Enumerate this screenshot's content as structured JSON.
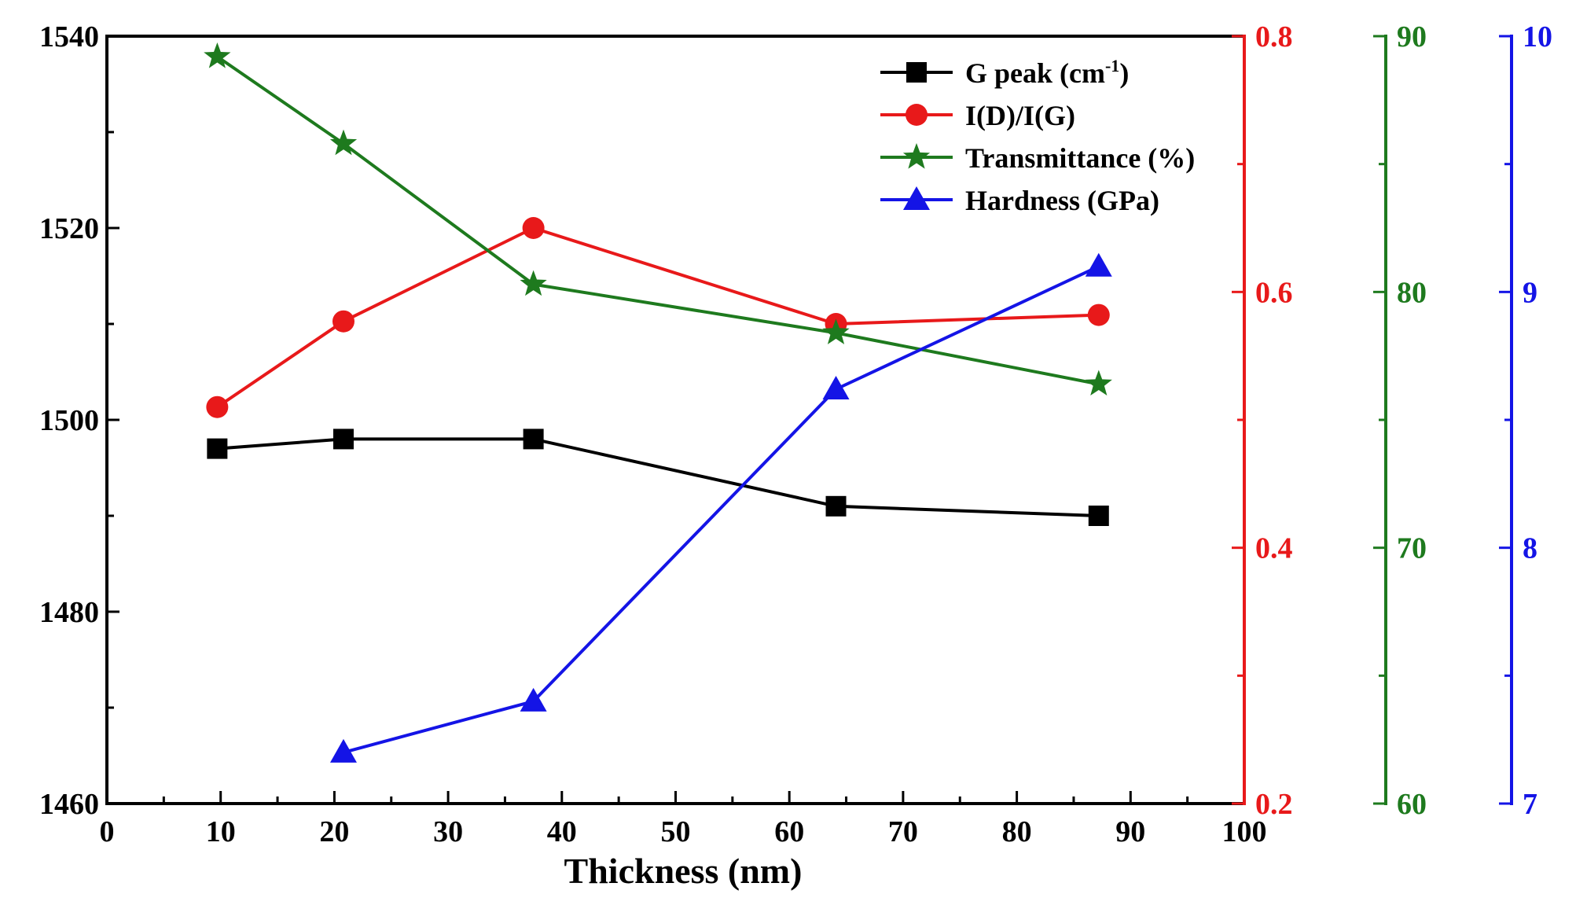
{
  "chart_data": {
    "type": "line",
    "title": "",
    "xlabel": "Thickness (nm)",
    "xlim": [
      0,
      100
    ],
    "xticks": [
      "0",
      "10",
      "20",
      "30",
      "40",
      "50",
      "60",
      "70",
      "80",
      "90",
      "100"
    ],
    "grid": false,
    "legend_position": "top-right",
    "axes": [
      {
        "id": "g",
        "side": "left",
        "ylim": [
          1460,
          1540
        ],
        "color": "#000000",
        "ticks": [
          "1460",
          "1480",
          "1500",
          "1520",
          "1540"
        ],
        "tick_values": [
          1460,
          1480,
          1500,
          1520,
          1540
        ]
      },
      {
        "id": "r",
        "side": "right-1",
        "ylim": [
          0.2,
          0.8
        ],
        "color": "#e8191a",
        "ticks": [
          "0.2",
          "0.4",
          "0.6",
          "0.8"
        ],
        "tick_values": [
          0.2,
          0.4,
          0.6,
          0.8
        ]
      },
      {
        "id": "t",
        "side": "right-2",
        "ylim": [
          60,
          90
        ],
        "color": "#1e7a1e",
        "ticks": [
          "60",
          "70",
          "80",
          "90"
        ],
        "tick_values": [
          60,
          70,
          80,
          90
        ]
      },
      {
        "id": "h",
        "side": "right-3",
        "ylim": [
          7,
          10
        ],
        "color": "#1414e6",
        "ticks": [
          "7",
          "8",
          "9",
          "10"
        ],
        "tick_values": [
          7,
          8,
          9,
          10
        ]
      }
    ],
    "series": [
      {
        "name": "G peak (cm",
        "superscript": "-1",
        "name_suffix": ")",
        "axis": "g",
        "color": "#000000",
        "marker": "square",
        "x": [
          9.7,
          20.8,
          37.5,
          64.1,
          87.2
        ],
        "y": [
          1497,
          1498,
          1498,
          1491,
          1490
        ]
      },
      {
        "name": "I(D)/I(G)",
        "axis": "r",
        "color": "#e8191a",
        "marker": "circle",
        "x": [
          9.7,
          20.8,
          37.5,
          64.1,
          87.2
        ],
        "y": [
          0.51,
          0.577,
          0.65,
          0.575,
          0.582
        ]
      },
      {
        "name": "Transmittance (%)",
        "axis": "t",
        "color": "#1e7a1e",
        "marker": "star",
        "x": [
          9.7,
          20.8,
          37.5,
          64.1,
          87.2
        ],
        "y": [
          89.2,
          85.8,
          80.3,
          78.4,
          76.4
        ]
      },
      {
        "name": "Hardness (GPa)",
        "axis": "h",
        "color": "#1414e6",
        "marker": "triangle",
        "x": [
          20.8,
          37.5,
          64.1,
          87.2
        ],
        "y": [
          7.2,
          7.4,
          8.62,
          9.1
        ]
      }
    ]
  }
}
